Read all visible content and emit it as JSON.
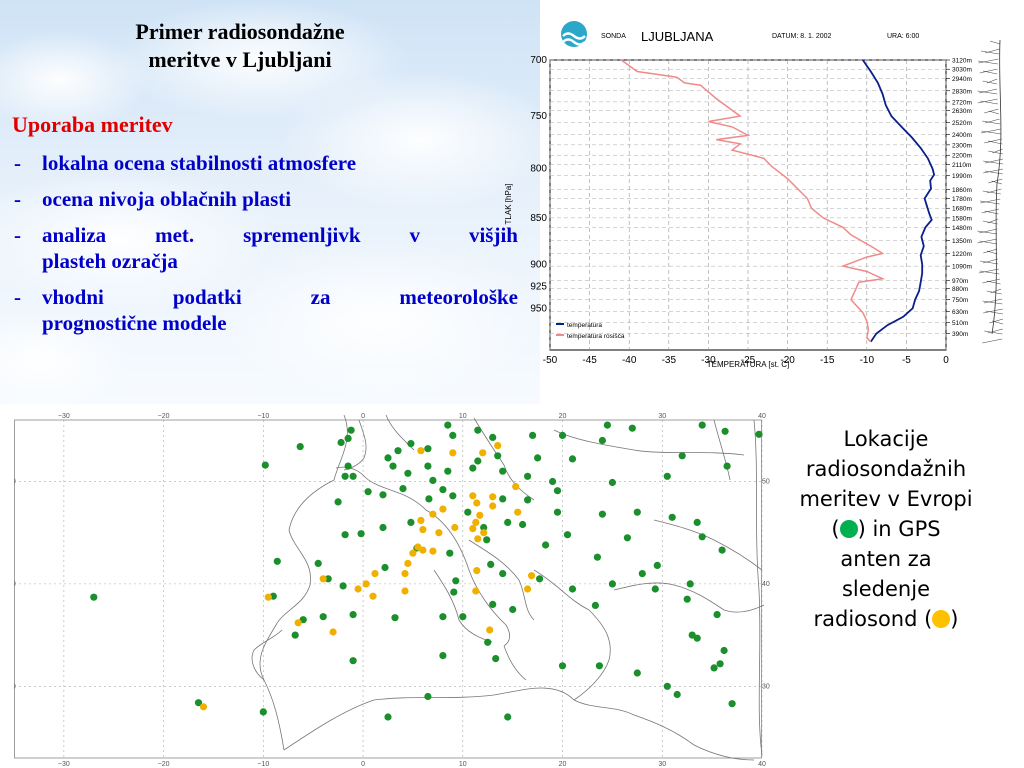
{
  "slide": {
    "title_line1": "Primer radiosondažne",
    "title_line2": "meritve v Ljubljani",
    "list_heading": "Uporaba meritev",
    "bullet_marker": "-",
    "uses": [
      {
        "lines": [
          "lokalna ocena stabilnosti atmosfere"
        ]
      },
      {
        "lines": [
          "ocena nivoja oblačnih plasti"
        ]
      },
      {
        "lines": [
          "analiza met. spremenljivk v višjih",
          "plasteh ozračja"
        ]
      },
      {
        "lines": [
          "vhodni podatki za meteorološke",
          "prognostične modele"
        ]
      }
    ]
  },
  "sounding": {
    "header_sonda": "SONDA",
    "station": "LJUBLJANA",
    "date_label": "DATUM: 8. 1. 2002",
    "hour_label": "URA: 6:00",
    "y_axis_title": "TLAK [hPa]",
    "x_axis_title": "TEMPERATURA [st. C]",
    "legend": [
      "temperatura",
      "temperatura rosišča"
    ],
    "colors": {
      "temperature": "#0a1e8c",
      "dewpoint": "#f08a8a",
      "grid": "#999999"
    }
  },
  "chart_data": {
    "type": "line",
    "title": "LJUBLJANA",
    "xlabel": "TEMPERATURA [st. C]",
    "ylabel": "TLAK [hPa]",
    "xlim": [
      -50,
      0
    ],
    "ylim": [
      1000,
      700
    ],
    "x_ticks": [
      -50,
      -45,
      -40,
      -35,
      -30,
      -25,
      -20,
      -15,
      -10,
      -5,
      0
    ],
    "y_ticks": [
      700,
      750,
      800,
      850,
      900,
      925,
      950
    ],
    "height_labels": [
      {
        "p": 700,
        "label": "3120m"
      },
      {
        "p": 708,
        "label": "3030m"
      },
      {
        "p": 716,
        "label": "2940m"
      },
      {
        "p": 727,
        "label": "2830m"
      },
      {
        "p": 737,
        "label": "2720m"
      },
      {
        "p": 745,
        "label": "2630m"
      },
      {
        "p": 756,
        "label": "2520m"
      },
      {
        "p": 767,
        "label": "2400m"
      },
      {
        "p": 777,
        "label": "2300m"
      },
      {
        "p": 787,
        "label": "2200m"
      },
      {
        "p": 796,
        "label": "2110m"
      },
      {
        "p": 807,
        "label": "1990m"
      },
      {
        "p": 821,
        "label": "1860m"
      },
      {
        "p": 830,
        "label": "1780m"
      },
      {
        "p": 840,
        "label": "1680m"
      },
      {
        "p": 850,
        "label": "1580m"
      },
      {
        "p": 860,
        "label": "1480m"
      },
      {
        "p": 874,
        "label": "1350m"
      },
      {
        "p": 888,
        "label": "1220m"
      },
      {
        "p": 902,
        "label": "1090m"
      },
      {
        "p": 918,
        "label": "970m"
      },
      {
        "p": 927,
        "label": "880m"
      },
      {
        "p": 940,
        "label": "750m"
      },
      {
        "p": 954,
        "label": "630m"
      },
      {
        "p": 967,
        "label": "510m"
      },
      {
        "p": 980,
        "label": "390m"
      }
    ],
    "series": [
      {
        "name": "temperatura",
        "points": [
          [
            -10.5,
            700
          ],
          [
            -9.5,
            710
          ],
          [
            -8.6,
            720
          ],
          [
            -8.0,
            730
          ],
          [
            -7.6,
            740
          ],
          [
            -6.9,
            750
          ],
          [
            -5.6,
            760
          ],
          [
            -4.3,
            770
          ],
          [
            -3.2,
            780
          ],
          [
            -2.3,
            790
          ],
          [
            -1.7,
            800
          ],
          [
            -1.5,
            806
          ],
          [
            -2.0,
            812
          ],
          [
            -1.9,
            820
          ],
          [
            -2.7,
            830
          ],
          [
            -2.4,
            838
          ],
          [
            -2.1,
            846
          ],
          [
            -1.8,
            852
          ],
          [
            -2.6,
            860
          ],
          [
            -3.1,
            870
          ],
          [
            -2.8,
            880
          ],
          [
            -3.2,
            890
          ],
          [
            -3.0,
            900
          ],
          [
            -3.0,
            910
          ],
          [
            -3.2,
            920
          ],
          [
            -3.4,
            930
          ],
          [
            -3.9,
            940
          ],
          [
            -4.2,
            950
          ],
          [
            -5.4,
            960
          ],
          [
            -7.4,
            970
          ],
          [
            -8.8,
            980
          ],
          [
            -9.5,
            990
          ]
        ]
      },
      {
        "name": "temperatura rosišča",
        "points": [
          [
            -41,
            700
          ],
          [
            -39,
            710
          ],
          [
            -37,
            712
          ],
          [
            -34,
            715
          ],
          [
            -33,
            720
          ],
          [
            -31,
            722
          ],
          [
            -29,
            734
          ],
          [
            -26,
            750
          ],
          [
            -30,
            755
          ],
          [
            -27,
            760
          ],
          [
            -25,
            768
          ],
          [
            -29,
            772
          ],
          [
            -26,
            776
          ],
          [
            -27,
            782
          ],
          [
            -25,
            786
          ],
          [
            -23,
            790
          ],
          [
            -22,
            798
          ],
          [
            -20,
            810
          ],
          [
            -17.5,
            830
          ],
          [
            -17,
            840
          ],
          [
            -15.5,
            850
          ],
          [
            -13,
            860
          ],
          [
            -12,
            868
          ],
          [
            -9.5,
            880
          ],
          [
            -8,
            888
          ],
          [
            -10,
            892
          ],
          [
            -13,
            902
          ],
          [
            -10,
            908
          ],
          [
            -8,
            916
          ],
          [
            -11,
            920
          ],
          [
            -12,
            940
          ],
          [
            -10.5,
            955
          ],
          [
            -10,
            965
          ],
          [
            -9.8,
            975
          ],
          [
            -10,
            985
          ],
          [
            -9.5,
            990
          ]
        ]
      }
    ]
  },
  "map": {
    "lon_ticks": [
      "−30",
      "−20",
      "−10",
      "0",
      "10",
      "20",
      "30",
      "40"
    ],
    "lat_ticks": [
      "50",
      "40",
      "30"
    ],
    "colors": {
      "radiosonde": "#1a8f2c",
      "gps": "#f0b000",
      "coast": "#777777",
      "grid": "#9a9a9a"
    },
    "radiosonde_stations": [
      [
        -27,
        38.7
      ],
      [
        -16.5,
        28.4
      ],
      [
        -10,
        27.5
      ],
      [
        -9.8,
        51.6
      ],
      [
        -9.0,
        38.8
      ],
      [
        -8.6,
        42.2
      ],
      [
        -6.3,
        53.4
      ],
      [
        -6.0,
        36.5
      ],
      [
        -6.8,
        35.0
      ],
      [
        -4.0,
        36.8
      ],
      [
        -4.5,
        42.0
      ],
      [
        -3.5,
        40.5
      ],
      [
        -1.0,
        37.0
      ],
      [
        -1.0,
        32.5
      ],
      [
        -1.8,
        44.8
      ],
      [
        -2.5,
        48.0
      ],
      [
        -2.0,
        39.8
      ],
      [
        -2.2,
        53.8
      ],
      [
        -1.5,
        54.2
      ],
      [
        -1.2,
        55.0
      ],
      [
        -1.5,
        51.5
      ],
      [
        -1.8,
        50.5
      ],
      [
        -1.0,
        50.5
      ],
      [
        2.5,
        27.0
      ],
      [
        2.2,
        41.6
      ],
      [
        3.2,
        36.7
      ],
      [
        2.0,
        48.7
      ],
      [
        0.5,
        49.0
      ],
      [
        3.0,
        51.5
      ],
      [
        2.5,
        52.3
      ],
      [
        4.5,
        50.8
      ],
      [
        3.5,
        53.0
      ],
      [
        4.8,
        53.7
      ],
      [
        6.5,
        53.2
      ],
      [
        6.5,
        51.5
      ],
      [
        7.0,
        50.1
      ],
      [
        8.0,
        49.2
      ],
      [
        9.0,
        48.6
      ],
      [
        10.5,
        47.0
      ],
      [
        9.0,
        54.5
      ],
      [
        8.5,
        51.0
      ],
      [
        8.5,
        55.5
      ],
      [
        11.5,
        55.0
      ],
      [
        11.0,
        51.3
      ],
      [
        11.5,
        52.0
      ],
      [
        13.0,
        54.3
      ],
      [
        13.5,
        52.5
      ],
      [
        14.0,
        51.0
      ],
      [
        14.0,
        48.3
      ],
      [
        14.5,
        46.0
      ],
      [
        16.5,
        48.2
      ],
      [
        16.5,
        50.5
      ],
      [
        17.5,
        52.3
      ],
      [
        19.0,
        50.0
      ],
      [
        19.5,
        47.0
      ],
      [
        17.0,
        54.5
      ],
      [
        21.0,
        52.2
      ],
      [
        20.0,
        54.5
      ],
      [
        24.0,
        54.0
      ],
      [
        19.5,
        49.1
      ],
      [
        25.0,
        49.9
      ],
      [
        24.0,
        46.8
      ],
      [
        27.5,
        47.0
      ],
      [
        26.5,
        44.5
      ],
      [
        23.5,
        42.6
      ],
      [
        20.5,
        44.8
      ],
      [
        18.3,
        43.8
      ],
      [
        16.0,
        45.8
      ],
      [
        14.0,
        41.0
      ],
      [
        17.7,
        40.5
      ],
      [
        15.0,
        37.5
      ],
      [
        13.0,
        38.0
      ],
      [
        12.8,
        41.9
      ],
      [
        9.3,
        40.3
      ],
      [
        8.7,
        43.0
      ],
      [
        9.1,
        39.2
      ],
      [
        12.4,
        44.3
      ],
      [
        12.1,
        45.5
      ],
      [
        21.0,
        39.5
      ],
      [
        25.0,
        40.0
      ],
      [
        23.3,
        37.9
      ],
      [
        28.0,
        41.0
      ],
      [
        29.3,
        39.5
      ],
      [
        29.5,
        41.8
      ],
      [
        32.5,
        38.5
      ],
      [
        32.8,
        40.0
      ],
      [
        35.5,
        37.0
      ],
      [
        33.0,
        35.0
      ],
      [
        33.5,
        34.7
      ],
      [
        35.2,
        31.8
      ],
      [
        36.2,
        33.5
      ],
      [
        35.8,
        32.2
      ],
      [
        30.5,
        30.0
      ],
      [
        31.5,
        29.2
      ],
      [
        37.0,
        28.3
      ],
      [
        32.0,
        52.5
      ],
      [
        30.5,
        50.5
      ],
      [
        36.5,
        51.5
      ],
      [
        36.3,
        54.9
      ],
      [
        39.7,
        54.6
      ],
      [
        33.5,
        46.0
      ],
      [
        34.0,
        44.6
      ],
      [
        36.0,
        43.3
      ],
      [
        31.0,
        46.5
      ],
      [
        24.5,
        55.5
      ],
      [
        27.0,
        55.2
      ],
      [
        34.0,
        55.5
      ],
      [
        10.0,
        36.8
      ],
      [
        12.5,
        34.3
      ],
      [
        13.3,
        32.7
      ],
      [
        8.0,
        36.8
      ],
      [
        8.0,
        33.0
      ],
      [
        14.5,
        27.0
      ],
      [
        20.0,
        32.0
      ],
      [
        23.7,
        32.0
      ],
      [
        27.5,
        31.3
      ],
      [
        6.5,
        29.0
      ],
      [
        -0.2,
        44.9
      ],
      [
        2.0,
        45.5
      ],
      [
        5.4,
        43.5
      ],
      [
        4.8,
        46.0
      ],
      [
        6.6,
        48.3
      ],
      [
        4.0,
        49.3
      ]
    ],
    "gps_stations": [
      [
        -16.0,
        28.0
      ],
      [
        -9.5,
        38.7
      ],
      [
        -6.5,
        36.2
      ],
      [
        -3.0,
        35.3
      ],
      [
        -4.0,
        40.5
      ],
      [
        1.0,
        38.8
      ],
      [
        0.3,
        40.0
      ],
      [
        1.2,
        41.0
      ],
      [
        4.2,
        39.3
      ],
      [
        4.5,
        42.0
      ],
      [
        5.0,
        43.0
      ],
      [
        5.5,
        43.6
      ],
      [
        6.0,
        43.3
      ],
      [
        7.0,
        43.2
      ],
      [
        7.6,
        45.0
      ],
      [
        6.0,
        45.3
      ],
      [
        5.8,
        46.2
      ],
      [
        7.0,
        46.8
      ],
      [
        8.0,
        47.3
      ],
      [
        9.2,
        45.5
      ],
      [
        11.0,
        45.4
      ],
      [
        11.5,
        44.4
      ],
      [
        11.3,
        46.0
      ],
      [
        11.7,
        46.7
      ],
      [
        11.4,
        47.9
      ],
      [
        11.0,
        48.6
      ],
      [
        13.0,
        47.6
      ],
      [
        13.0,
        48.5
      ],
      [
        12.1,
        45.0
      ],
      [
        15.5,
        47.0
      ],
      [
        12.7,
        35.5
      ],
      [
        16.5,
        39.5
      ],
      [
        16.9,
        40.8
      ],
      [
        5.8,
        53.0
      ],
      [
        9.0,
        52.8
      ],
      [
        12.0,
        52.8
      ],
      [
        13.5,
        53.5
      ],
      [
        15.3,
        49.5
      ],
      [
        11.4,
        41.3
      ],
      [
        11.3,
        39.3
      ],
      [
        4.2,
        41.0
      ],
      [
        -0.5,
        39.5
      ]
    ]
  },
  "caption": {
    "line1": "Lokacije",
    "line2": "radiosondažnih",
    "line3": "meritev v Evropi",
    "line4_pre": "(",
    "line4_post": ") in GPS",
    "line5": "anten za",
    "line6": "sledenje",
    "line7_pre": "radiosond (",
    "line7_post": ")"
  }
}
